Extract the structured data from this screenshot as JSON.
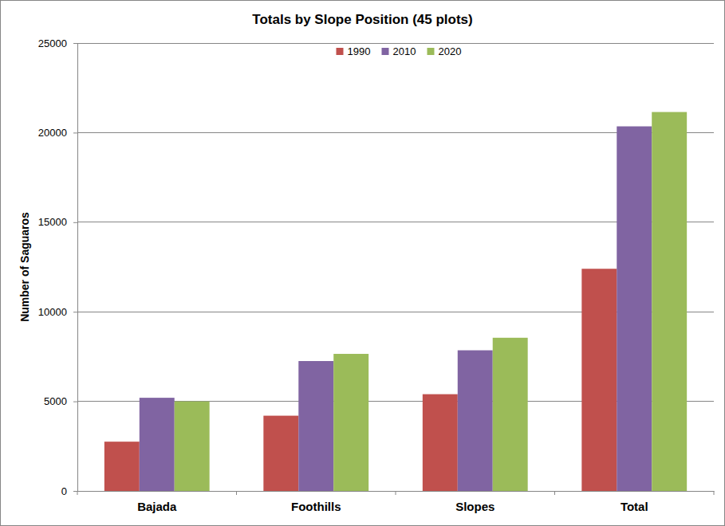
{
  "chart_data": {
    "type": "bar",
    "title": "Totals by Slope Position (45 plots)",
    "y_label": "Number of Saguaros",
    "categories": [
      "Bajada",
      "Foothills",
      "Slopes",
      "Total"
    ],
    "series": [
      {
        "name": "1990",
        "color": "#c0504d",
        "values": [
          2750,
          4200,
          5400,
          12400
        ]
      },
      {
        "name": "2010",
        "color": "#8064a2",
        "values": [
          5200,
          7250,
          7850,
          20350
        ]
      },
      {
        "name": "2020",
        "color": "#9bbb59",
        "values": [
          5000,
          7650,
          8550,
          21150
        ]
      }
    ],
    "ylim": [
      0,
      25000
    ],
    "yticks": [
      0,
      5000,
      10000,
      15000,
      20000,
      25000
    ],
    "grid": true,
    "legend": "top"
  }
}
